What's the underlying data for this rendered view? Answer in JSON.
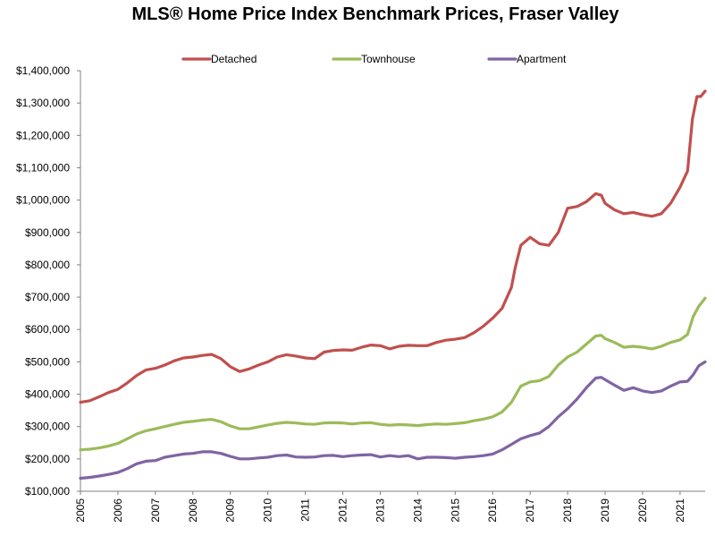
{
  "chart_data": {
    "type": "line",
    "title": "MLS® Home Price Index Benchmark Prices, Fraser Valley",
    "xlabel": "",
    "ylabel": "",
    "xlim": [
      2005,
      2021.67
    ],
    "ylim": [
      100000,
      1400000
    ],
    "y_ticks": [
      100000,
      200000,
      300000,
      400000,
      500000,
      600000,
      700000,
      800000,
      900000,
      1000000,
      1100000,
      1200000,
      1300000,
      1400000
    ],
    "y_tick_labels": [
      "$100,000",
      "$200,000",
      "$300,000",
      "$400,000",
      "$500,000",
      "$600,000",
      "$700,000",
      "$800,000",
      "$900,000",
      "$1,000,000",
      "$1,100,000",
      "$1,200,000",
      "$1,300,000",
      "$1,400,000"
    ],
    "x_ticks": [
      2005,
      2006,
      2007,
      2008,
      2009,
      2010,
      2011,
      2012,
      2013,
      2014,
      2015,
      2016,
      2017,
      2018,
      2019,
      2020,
      2021
    ],
    "x_tick_labels": [
      "2005",
      "2006",
      "2007",
      "2008",
      "2009",
      "2010",
      "2011",
      "2012",
      "2013",
      "2014",
      "2015",
      "2016",
      "2017",
      "2018",
      "2019",
      "2020",
      "2021"
    ],
    "grid": false,
    "legend_position": "top",
    "series": [
      {
        "name": "Detached",
        "color": "#c0504d",
        "points": [
          [
            2005.0,
            375000
          ],
          [
            2005.25,
            380000
          ],
          [
            2005.5,
            392000
          ],
          [
            2005.75,
            405000
          ],
          [
            2006.0,
            415000
          ],
          [
            2006.25,
            435000
          ],
          [
            2006.5,
            458000
          ],
          [
            2006.75,
            475000
          ],
          [
            2007.0,
            480000
          ],
          [
            2007.25,
            490000
          ],
          [
            2007.5,
            503000
          ],
          [
            2007.75,
            512000
          ],
          [
            2008.0,
            515000
          ],
          [
            2008.25,
            520000
          ],
          [
            2008.5,
            523000
          ],
          [
            2008.75,
            510000
          ],
          [
            2009.0,
            485000
          ],
          [
            2009.25,
            470000
          ],
          [
            2009.5,
            478000
          ],
          [
            2009.75,
            490000
          ],
          [
            2010.0,
            500000
          ],
          [
            2010.25,
            515000
          ],
          [
            2010.5,
            522000
          ],
          [
            2010.75,
            518000
          ],
          [
            2011.0,
            512000
          ],
          [
            2011.25,
            510000
          ],
          [
            2011.5,
            530000
          ],
          [
            2011.75,
            535000
          ],
          [
            2012.0,
            537000
          ],
          [
            2012.25,
            536000
          ],
          [
            2012.5,
            545000
          ],
          [
            2012.75,
            552000
          ],
          [
            2013.0,
            550000
          ],
          [
            2013.25,
            540000
          ],
          [
            2013.5,
            548000
          ],
          [
            2013.75,
            551000
          ],
          [
            2014.0,
            550000
          ],
          [
            2014.25,
            550000
          ],
          [
            2014.5,
            560000
          ],
          [
            2014.75,
            567000
          ],
          [
            2015.0,
            570000
          ],
          [
            2015.25,
            575000
          ],
          [
            2015.5,
            590000
          ],
          [
            2015.75,
            610000
          ],
          [
            2016.0,
            635000
          ],
          [
            2016.25,
            665000
          ],
          [
            2016.5,
            730000
          ],
          [
            2016.6,
            790000
          ],
          [
            2016.75,
            860000
          ],
          [
            2017.0,
            885000
          ],
          [
            2017.25,
            865000
          ],
          [
            2017.5,
            860000
          ],
          [
            2017.75,
            900000
          ],
          [
            2018.0,
            975000
          ],
          [
            2018.25,
            980000
          ],
          [
            2018.5,
            995000
          ],
          [
            2018.75,
            1020000
          ],
          [
            2018.9,
            1015000
          ],
          [
            2019.0,
            990000
          ],
          [
            2019.25,
            970000
          ],
          [
            2019.5,
            958000
          ],
          [
            2019.75,
            962000
          ],
          [
            2020.0,
            955000
          ],
          [
            2020.25,
            950000
          ],
          [
            2020.5,
            958000
          ],
          [
            2020.75,
            990000
          ],
          [
            2021.0,
            1040000
          ],
          [
            2021.2,
            1090000
          ],
          [
            2021.33,
            1250000
          ],
          [
            2021.45,
            1320000
          ],
          [
            2021.55,
            1320000
          ],
          [
            2021.67,
            1337000
          ]
        ]
      },
      {
        "name": "Townhouse",
        "color": "#9bbb59",
        "points": [
          [
            2005.0,
            228000
          ],
          [
            2005.25,
            230000
          ],
          [
            2005.5,
            234000
          ],
          [
            2005.75,
            240000
          ],
          [
            2006.0,
            248000
          ],
          [
            2006.25,
            262000
          ],
          [
            2006.5,
            277000
          ],
          [
            2006.75,
            287000
          ],
          [
            2007.0,
            293000
          ],
          [
            2007.25,
            300000
          ],
          [
            2007.5,
            307000
          ],
          [
            2007.75,
            313000
          ],
          [
            2008.0,
            316000
          ],
          [
            2008.25,
            320000
          ],
          [
            2008.5,
            322000
          ],
          [
            2008.75,
            315000
          ],
          [
            2009.0,
            302000
          ],
          [
            2009.25,
            293000
          ],
          [
            2009.5,
            293000
          ],
          [
            2009.75,
            299000
          ],
          [
            2010.0,
            305000
          ],
          [
            2010.25,
            310000
          ],
          [
            2010.5,
            313000
          ],
          [
            2010.75,
            311000
          ],
          [
            2011.0,
            308000
          ],
          [
            2011.25,
            307000
          ],
          [
            2011.5,
            311000
          ],
          [
            2011.75,
            312000
          ],
          [
            2012.0,
            311000
          ],
          [
            2012.25,
            308000
          ],
          [
            2012.5,
            311000
          ],
          [
            2012.75,
            312000
          ],
          [
            2013.0,
            307000
          ],
          [
            2013.25,
            304000
          ],
          [
            2013.5,
            306000
          ],
          [
            2013.75,
            305000
          ],
          [
            2014.0,
            303000
          ],
          [
            2014.25,
            306000
          ],
          [
            2014.5,
            308000
          ],
          [
            2014.75,
            307000
          ],
          [
            2015.0,
            309000
          ],
          [
            2015.25,
            312000
          ],
          [
            2015.5,
            318000
          ],
          [
            2015.75,
            323000
          ],
          [
            2016.0,
            330000
          ],
          [
            2016.25,
            345000
          ],
          [
            2016.5,
            375000
          ],
          [
            2016.75,
            425000
          ],
          [
            2017.0,
            438000
          ],
          [
            2017.25,
            442000
          ],
          [
            2017.5,
            455000
          ],
          [
            2017.75,
            490000
          ],
          [
            2018.0,
            515000
          ],
          [
            2018.25,
            530000
          ],
          [
            2018.5,
            555000
          ],
          [
            2018.75,
            580000
          ],
          [
            2018.9,
            582000
          ],
          [
            2019.0,
            572000
          ],
          [
            2019.25,
            560000
          ],
          [
            2019.5,
            545000
          ],
          [
            2019.75,
            548000
          ],
          [
            2020.0,
            545000
          ],
          [
            2020.25,
            540000
          ],
          [
            2020.5,
            548000
          ],
          [
            2020.75,
            560000
          ],
          [
            2021.0,
            568000
          ],
          [
            2021.2,
            585000
          ],
          [
            2021.35,
            640000
          ],
          [
            2021.5,
            672000
          ],
          [
            2021.67,
            697000
          ]
        ]
      },
      {
        "name": "Apartment",
        "color": "#8064a2",
        "points": [
          [
            2005.0,
            140000
          ],
          [
            2005.25,
            143000
          ],
          [
            2005.5,
            147000
          ],
          [
            2005.75,
            152000
          ],
          [
            2006.0,
            158000
          ],
          [
            2006.25,
            170000
          ],
          [
            2006.5,
            185000
          ],
          [
            2006.75,
            193000
          ],
          [
            2007.0,
            195000
          ],
          [
            2007.25,
            205000
          ],
          [
            2007.5,
            210000
          ],
          [
            2007.75,
            215000
          ],
          [
            2008.0,
            217000
          ],
          [
            2008.25,
            222000
          ],
          [
            2008.5,
            222000
          ],
          [
            2008.75,
            217000
          ],
          [
            2009.0,
            208000
          ],
          [
            2009.25,
            200000
          ],
          [
            2009.5,
            200000
          ],
          [
            2009.75,
            203000
          ],
          [
            2010.0,
            205000
          ],
          [
            2010.25,
            210000
          ],
          [
            2010.5,
            212000
          ],
          [
            2010.75,
            206000
          ],
          [
            2011.0,
            205000
          ],
          [
            2011.25,
            206000
          ],
          [
            2011.5,
            210000
          ],
          [
            2011.75,
            211000
          ],
          [
            2012.0,
            207000
          ],
          [
            2012.25,
            210000
          ],
          [
            2012.5,
            212000
          ],
          [
            2012.75,
            213000
          ],
          [
            2013.0,
            206000
          ],
          [
            2013.25,
            210000
          ],
          [
            2013.5,
            207000
          ],
          [
            2013.75,
            210000
          ],
          [
            2014.0,
            200000
          ],
          [
            2014.25,
            205000
          ],
          [
            2014.5,
            205000
          ],
          [
            2014.75,
            204000
          ],
          [
            2015.0,
            202000
          ],
          [
            2015.25,
            205000
          ],
          [
            2015.5,
            207000
          ],
          [
            2015.75,
            210000
          ],
          [
            2016.0,
            215000
          ],
          [
            2016.25,
            228000
          ],
          [
            2016.5,
            245000
          ],
          [
            2016.75,
            262000
          ],
          [
            2017.0,
            272000
          ],
          [
            2017.25,
            280000
          ],
          [
            2017.5,
            300000
          ],
          [
            2017.75,
            330000
          ],
          [
            2018.0,
            355000
          ],
          [
            2018.25,
            385000
          ],
          [
            2018.5,
            420000
          ],
          [
            2018.75,
            450000
          ],
          [
            2018.9,
            452000
          ],
          [
            2019.0,
            445000
          ],
          [
            2019.25,
            428000
          ],
          [
            2019.5,
            412000
          ],
          [
            2019.75,
            420000
          ],
          [
            2020.0,
            410000
          ],
          [
            2020.25,
            405000
          ],
          [
            2020.5,
            410000
          ],
          [
            2020.75,
            425000
          ],
          [
            2021.0,
            438000
          ],
          [
            2021.2,
            440000
          ],
          [
            2021.35,
            460000
          ],
          [
            2021.5,
            488000
          ],
          [
            2021.67,
            500000
          ]
        ]
      }
    ]
  }
}
